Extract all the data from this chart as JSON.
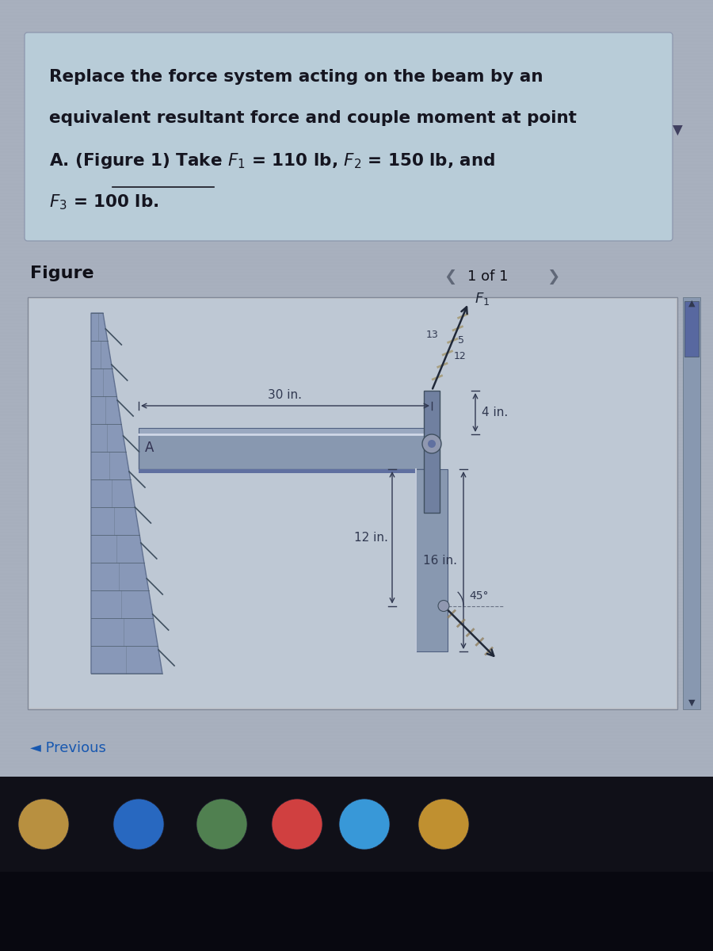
{
  "page_bg": "#a8b0be",
  "text_box_bg": "#b8ccd8",
  "fig_area_bg": "#c0c4cc",
  "fig_inner_bg": "#bcc8d4",
  "wall_face_color": "#7888a8",
  "wall_dark_color": "#4a5870",
  "beam_color": "#8898b0",
  "beam_top_color": "#b0bcc8",
  "plate_color": "#6878a0",
  "col_color": "#8898b0",
  "col_dark": "#5a6880",
  "dim_color": "#303850",
  "arrow_color": "#202838",
  "taskbar_bg": "#101018",
  "scroll_bg": "#8898b0",
  "scroll_thumb": "#5868a0",
  "problem_text_line1": "Replace the force system acting on the beam by an",
  "problem_text_line2": "equivalent resultant force and couple moment at point",
  "problem_text_line3_pre": "A. (Figure 1) Take ",
  "problem_text_line3_mid": "F",
  "problem_text_line3_post": " = 110 lb, F",
  "problem_text_line3_end": " = 150 lb, and",
  "problem_text_line4": "F",
  "problem_text_line4_post": " = 100 lb.",
  "figure_label": "Figure",
  "nav_text": "1 of 1",
  "dim_30": "30 in.",
  "dim_4": "4 in.",
  "dim_12": "12 in.",
  "dim_16": "16 in.",
  "label_A": "A",
  "label_F1": "F",
  "label_13": "13",
  "label_5": "5",
  "label_12b": "12",
  "label_45": "45°",
  "icon_colors": [
    "#b89040",
    "#2868c0",
    "#508050",
    "#d04040",
    "#3898d8",
    "#c09030"
  ]
}
